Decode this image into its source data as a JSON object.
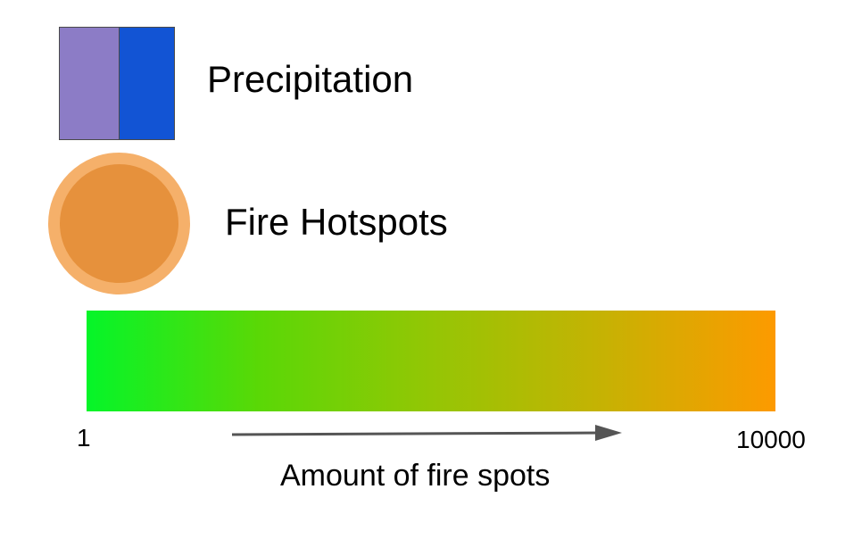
{
  "legend": {
    "precipitation": {
      "label": "Precipitation",
      "colors": [
        "#8c7cc6",
        "#1254d4"
      ]
    },
    "fire_hotspots": {
      "label": "Fire Hotspots",
      "fill": "#e6913c",
      "ring": "#f5b06a"
    }
  },
  "colorbar": {
    "min_label": "1",
    "max_label": "10000",
    "caption": "Amount of fire spots",
    "colors": [
      "#05f529",
      "#5ad806",
      "#94c605",
      "#c6b203",
      "#fd9a00"
    ],
    "arrow_icon": "right-arrow-icon"
  }
}
